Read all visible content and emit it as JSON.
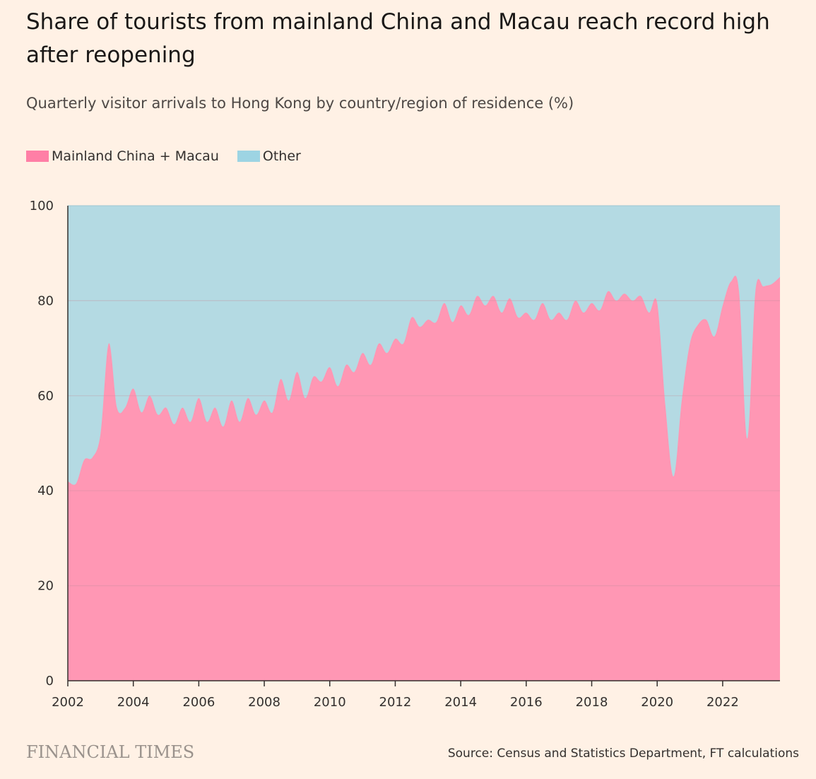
{
  "header": {
    "title": "Share of tourists from mainland China and Macau reach record high after reopening",
    "subtitle": "Quarterly visitor arrivals to Hong Kong by country/region of residence (%)"
  },
  "footer": {
    "brand": "FINANCIAL TIMES",
    "source": "Source: Census and Statistics Department, FT calculations"
  },
  "colors": {
    "mainland": "#ff97b4",
    "mainland_swatch": "#ff7fa6",
    "other": "#b4dae3",
    "other_swatch": "#9dd4e3",
    "grid": "#c48c9a"
  },
  "chart_data": {
    "type": "area",
    "stacked": true,
    "title": "Share of tourists from mainland China and Macau reach record high after reopening",
    "subtitle": "Quarterly visitor arrivals to Hong Kong by country/region of residence (%)",
    "xlabel": "",
    "ylabel": "",
    "xlim": [
      2002,
      2023.75
    ],
    "ylim": [
      0,
      100
    ],
    "x_ticks": [
      "2002",
      "2004",
      "2006",
      "2008",
      "2010",
      "2012",
      "2014",
      "2016",
      "2018",
      "2020",
      "2022"
    ],
    "y_ticks": [
      "0",
      "20",
      "40",
      "60",
      "80",
      "100"
    ],
    "grid": true,
    "legend_position": "top-left",
    "series": [
      {
        "name": "Mainland China + Macau",
        "x": [
          2002.0,
          2002.25,
          2002.5,
          2002.75,
          2003.0,
          2003.25,
          2003.5,
          2003.75,
          2004.0,
          2004.25,
          2004.5,
          2004.75,
          2005.0,
          2005.25,
          2005.5,
          2005.75,
          2006.0,
          2006.25,
          2006.5,
          2006.75,
          2007.0,
          2007.25,
          2007.5,
          2007.75,
          2008.0,
          2008.25,
          2008.5,
          2008.75,
          2009.0,
          2009.25,
          2009.5,
          2009.75,
          2010.0,
          2010.25,
          2010.5,
          2010.75,
          2011.0,
          2011.25,
          2011.5,
          2011.75,
          2012.0,
          2012.25,
          2012.5,
          2012.75,
          2013.0,
          2013.25,
          2013.5,
          2013.75,
          2014.0,
          2014.25,
          2014.5,
          2014.75,
          2015.0,
          2015.25,
          2015.5,
          2015.75,
          2016.0,
          2016.25,
          2016.5,
          2016.75,
          2017.0,
          2017.25,
          2017.5,
          2017.75,
          2018.0,
          2018.25,
          2018.5,
          2018.75,
          2019.0,
          2019.25,
          2019.5,
          2019.75,
          2020.0,
          2020.25,
          2020.5,
          2020.75,
          2021.0,
          2021.25,
          2021.5,
          2021.75,
          2022.0,
          2022.25,
          2022.5,
          2022.75,
          2023.0,
          2023.25,
          2023.5,
          2023.75
        ],
        "values": [
          42,
          41.5,
          46.5,
          47,
          52,
          71,
          57.5,
          57.5,
          61.5,
          56.5,
          60,
          56,
          57.5,
          54,
          57.5,
          54.5,
          59.5,
          54.5,
          57.5,
          53.5,
          59,
          54.5,
          59.5,
          56,
          59,
          56.5,
          63.5,
          59,
          65,
          59.5,
          64,
          63,
          66,
          62,
          66.5,
          65,
          69,
          66.5,
          71,
          69,
          72,
          71,
          76.5,
          74.5,
          76,
          75.5,
          79.5,
          75.5,
          79,
          77,
          81,
          79,
          81,
          77.5,
          80.5,
          76.5,
          77.5,
          76,
          79.5,
          76,
          77.5,
          76,
          80,
          77.5,
          79.5,
          78,
          82,
          80,
          81.5,
          80,
          81,
          77.5,
          79.5,
          58,
          43,
          59,
          71,
          75,
          76,
          72.5,
          79,
          84,
          82,
          51,
          82,
          83,
          83.5,
          85
        ]
      },
      {
        "name": "Other",
        "note_shown_as": "remainder to 100"
      }
    ]
  }
}
